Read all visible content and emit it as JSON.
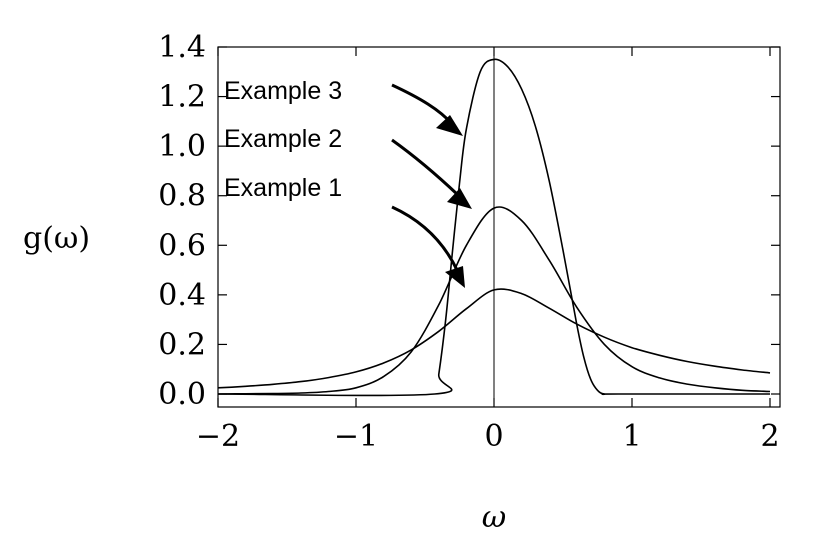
{
  "chart_data": {
    "type": "line",
    "title": "",
    "xlabel": "ω",
    "ylabel": "g(ω)",
    "xlim": [
      -2,
      2
    ],
    "ylim": [
      0,
      1.4
    ],
    "xticks": [
      {
        "value": -2,
        "label": "−2"
      },
      {
        "value": -1,
        "label": "−1"
      },
      {
        "value": 0,
        "label": "0"
      },
      {
        "value": 1,
        "label": "1"
      },
      {
        "value": 2,
        "label": "2"
      }
    ],
    "yticks": [
      {
        "value": 0.0,
        "label": "0.0"
      },
      {
        "value": 0.2,
        "label": "0.2"
      },
      {
        "value": 0.4,
        "label": "0.4"
      },
      {
        "value": 0.6,
        "label": "0.6"
      },
      {
        "value": 0.8,
        "label": "0.8"
      },
      {
        "value": 1.0,
        "label": "1.0"
      },
      {
        "value": 1.2,
        "label": "1.2"
      },
      {
        "value": 1.4,
        "label": "1.4"
      }
    ],
    "grid": false,
    "series": [
      {
        "name": "Example 1",
        "x": [
          -2,
          -1.8,
          -1.6,
          -1.4,
          -1.2,
          -1,
          -0.8,
          -0.6,
          -0.4,
          -0.2,
          0,
          0.2,
          0.4,
          0.6,
          0.8,
          1,
          1.2,
          1.4,
          1.6,
          1.8,
          2
        ],
        "y": [
          0.025,
          0.031,
          0.039,
          0.05,
          0.066,
          0.089,
          0.125,
          0.178,
          0.253,
          0.344,
          0.42,
          0.405,
          0.346,
          0.282,
          0.229,
          0.187,
          0.156,
          0.131,
          0.112,
          0.097,
          0.085
        ]
      },
      {
        "name": "Example 2",
        "x": [
          -2,
          -1.8,
          -1.6,
          -1.4,
          -1.2,
          -1,
          -0.8,
          -0.6,
          -0.4,
          -0.2,
          0,
          0.2,
          0.4,
          0.6,
          0.8,
          1,
          1.2,
          1.4,
          1.6,
          1.8,
          2
        ],
        "y": [
          0.0,
          0.001,
          0.002,
          0.004,
          0.01,
          0.025,
          0.07,
          0.17,
          0.36,
          0.6,
          0.75,
          0.7,
          0.54,
          0.35,
          0.2,
          0.11,
          0.065,
          0.04,
          0.025,
          0.015,
          0.01
        ]
      },
      {
        "name": "Example 3",
        "x": [
          -2,
          -0.43,
          -0.4,
          -0.35,
          -0.3,
          -0.25,
          -0.2,
          -0.1,
          0,
          0.1,
          0.2,
          0.3,
          0.4,
          0.5,
          0.6,
          0.65,
          0.7,
          0.75,
          0.8,
          0.9,
          2
        ],
        "y": [
          0.0,
          0.0,
          0.08,
          0.3,
          0.58,
          0.85,
          1.07,
          1.3,
          1.35,
          1.32,
          1.23,
          1.08,
          0.86,
          0.58,
          0.28,
          0.15,
          0.06,
          0.015,
          0.0,
          0.0,
          0.0
        ]
      }
    ],
    "annotations": [
      {
        "text": "Example 3",
        "target": "Example 3"
      },
      {
        "text": "Example 2",
        "target": "Example 2"
      },
      {
        "text": "Example 1",
        "target": "Example 1"
      }
    ]
  }
}
